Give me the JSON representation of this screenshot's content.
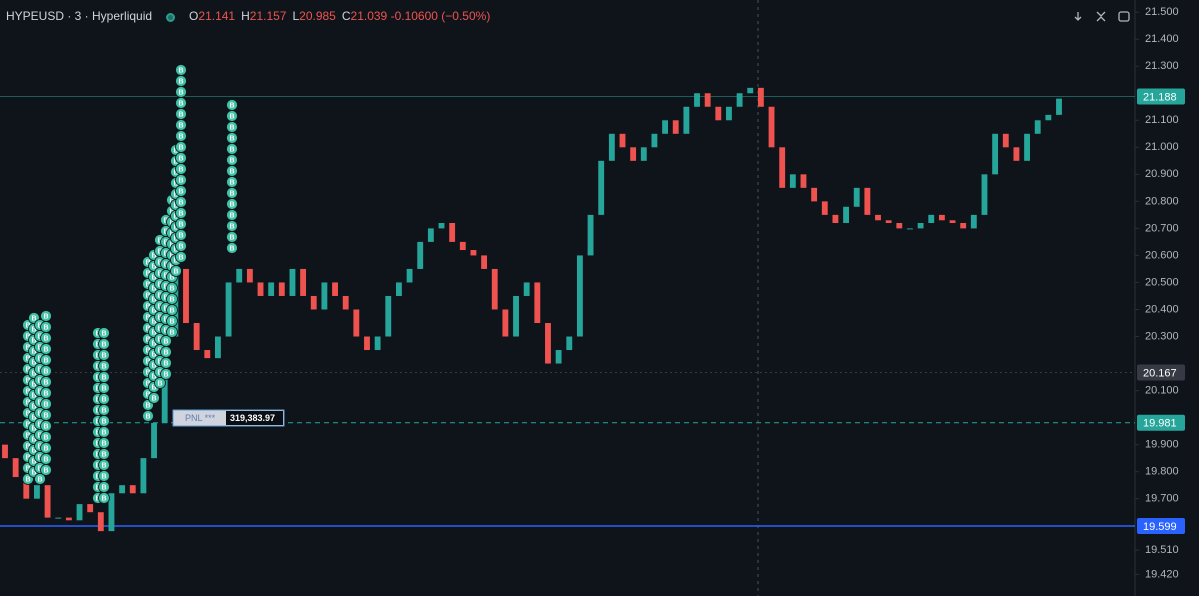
{
  "header": {
    "symbol": "HYPEUSD · 3 · Hyperliquid",
    "ohlc": [
      {
        "key": "O",
        "value": "21.141"
      },
      {
        "key": "H",
        "value": "21.157"
      },
      {
        "key": "L",
        "value": "20.985"
      },
      {
        "key": "C",
        "value": "21.039"
      }
    ],
    "change": "-0.10600 (−0.50%)"
  },
  "chart_data": {
    "type": "candlestick",
    "up_color": "#26a69a",
    "down_color": "#ef5350",
    "open": [
      19.9,
      19.85,
      19.78,
      19.7,
      19.75,
      19.63,
      19.63,
      19.62,
      19.68,
      19.65,
      19.58,
      19.72,
      19.75,
      19.72,
      19.85,
      19.98,
      20.3,
      20.55,
      20.35,
      20.25,
      20.22,
      20.3,
      20.5,
      20.55,
      20.5,
      20.45,
      20.5,
      20.45,
      20.55,
      20.45,
      20.4,
      20.5,
      20.45,
      20.4,
      20.3,
      20.25,
      20.3,
      20.45,
      20.5,
      20.55,
      20.65,
      20.7,
      20.72,
      20.65,
      20.62,
      20.6,
      20.55,
      20.4,
      20.3,
      20.45,
      20.5,
      20.35,
      20.2,
      20.25,
      20.3,
      20.6,
      20.75,
      20.95,
      21.05,
      21.0,
      20.95,
      21.0,
      21.05,
      21.1,
      21.05,
      21.15,
      21.2,
      21.15,
      21.1,
      21.15,
      21.2,
      21.22,
      21.15,
      21.0,
      20.85,
      20.9,
      20.85,
      20.8,
      20.75,
      20.72,
      20.78,
      20.85,
      20.75,
      20.73,
      20.72,
      20.7,
      20.7,
      20.72,
      20.75,
      20.73,
      20.72,
      20.7,
      20.75,
      20.9,
      21.05,
      21.0,
      20.95,
      21.05,
      21.1,
      21.12
    ],
    "close": [
      19.85,
      19.78,
      19.7,
      19.75,
      19.63,
      19.63,
      19.62,
      19.68,
      19.65,
      19.58,
      19.72,
      19.75,
      19.72,
      19.85,
      19.98,
      20.3,
      20.55,
      20.35,
      20.25,
      20.22,
      20.3,
      20.5,
      20.55,
      20.5,
      20.45,
      20.5,
      20.45,
      20.55,
      20.45,
      20.4,
      20.5,
      20.45,
      20.4,
      20.3,
      20.25,
      20.3,
      20.45,
      20.5,
      20.55,
      20.65,
      20.7,
      20.72,
      20.65,
      20.62,
      20.6,
      20.55,
      20.4,
      20.3,
      20.45,
      20.5,
      20.35,
      20.2,
      20.25,
      20.3,
      20.6,
      20.75,
      20.95,
      21.05,
      21.0,
      20.95,
      21.0,
      21.05,
      21.1,
      21.05,
      21.15,
      21.2,
      21.15,
      21.1,
      21.15,
      21.2,
      21.22,
      21.15,
      21.0,
      20.85,
      20.9,
      20.85,
      20.8,
      20.75,
      20.72,
      20.78,
      20.85,
      20.75,
      20.73,
      20.72,
      20.7,
      20.7,
      20.72,
      20.75,
      20.73,
      20.72,
      20.7,
      20.75,
      20.9,
      21.05,
      21.0,
      20.95,
      21.05,
      21.1,
      21.12,
      21.18
    ],
    "ylim": [
      19.34,
      21.545
    ],
    "yticks": [
      {
        "value": 21.5,
        "label": "21.500"
      },
      {
        "value": 21.4,
        "label": "21.400"
      },
      {
        "value": 21.3,
        "label": "21.300"
      },
      {
        "value": 21.1,
        "label": "21.100"
      },
      {
        "value": 21.0,
        "label": "21.000"
      },
      {
        "value": 20.9,
        "label": "20.900"
      },
      {
        "value": 20.8,
        "label": "20.800"
      },
      {
        "value": 20.7,
        "label": "20.700"
      },
      {
        "value": 20.6,
        "label": "20.600"
      },
      {
        "value": 20.5,
        "label": "20.500"
      },
      {
        "value": 20.4,
        "label": "20.400"
      },
      {
        "value": 20.3,
        "label": "20.300"
      },
      {
        "value": 20.1,
        "label": "20.100"
      },
      {
        "value": 19.9,
        "label": "19.900"
      },
      {
        "value": 19.8,
        "label": "19.800"
      },
      {
        "value": 19.7,
        "label": "19.700"
      },
      {
        "value": 19.51,
        "label": "19.510"
      },
      {
        "value": 19.42,
        "label": "19.420"
      }
    ],
    "price_lines": [
      {
        "value": 21.188,
        "color": "#26a69a",
        "style": "solid"
      },
      {
        "value": 20.167,
        "color": "#363a45",
        "style": "dotted"
      },
      {
        "value": 19.981,
        "color": "#26a69a",
        "style": "dashed"
      },
      {
        "value": 19.599,
        "color": "#2962ff",
        "style": "solid"
      }
    ],
    "trade_marker": "B",
    "pnl": {
      "label": "PNL ***",
      "value": "319,383.97"
    }
  }
}
